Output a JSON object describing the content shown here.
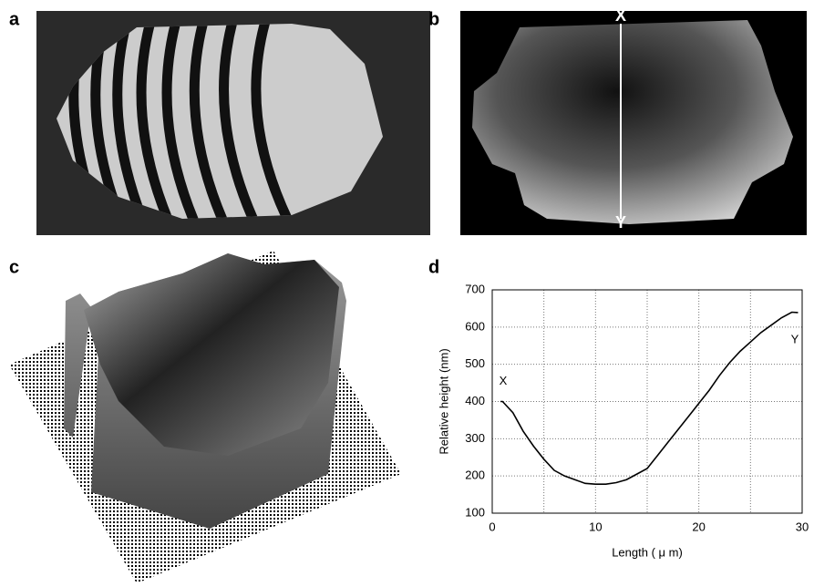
{
  "panel_labels": [
    "a",
    "b",
    "c",
    "d"
  ],
  "panel_b": {
    "top_label": "X",
    "bottom_label": "Y"
  },
  "chart_data": {
    "type": "line",
    "xlabel": "Length ( μ m)",
    "ylabel": "Relative height (nm)",
    "annotations": [
      "X",
      "Y"
    ],
    "x": [
      0.8,
      1,
      2,
      3,
      4,
      5,
      6,
      7,
      8,
      9,
      10,
      11,
      12,
      13,
      14,
      15,
      16,
      17,
      18,
      19,
      20,
      21,
      22,
      23,
      24,
      25,
      26,
      27,
      28,
      29,
      29.6
    ],
    "values": [
      400,
      400,
      370,
      320,
      280,
      245,
      215,
      200,
      190,
      180,
      178,
      178,
      182,
      190,
      205,
      220,
      255,
      290,
      325,
      360,
      395,
      430,
      470,
      505,
      535,
      560,
      585,
      605,
      625,
      640,
      639
    ],
    "color": "#000000",
    "xlim": [
      0,
      30
    ],
    "xticks": [
      0,
      10,
      20,
      30
    ],
    "xgrid_minor": [
      5,
      15,
      25
    ],
    "ylim": [
      100,
      700
    ],
    "yticks": [
      100,
      200,
      300,
      400,
      500,
      600,
      700
    ],
    "grid": true
  }
}
